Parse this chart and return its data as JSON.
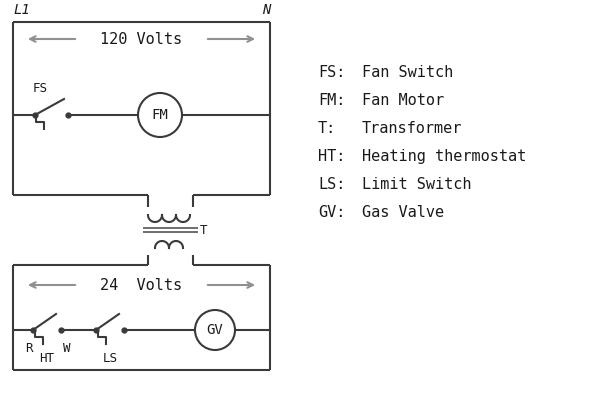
{
  "bg_color": "#ffffff",
  "line_color": "#3a3a3a",
  "arrow_color": "#909090",
  "text_color": "#1a1a1a",
  "legend": [
    [
      "FS:",
      "Fan Switch"
    ],
    [
      "FM:",
      "Fan Motor"
    ],
    [
      "T:",
      "Transformer"
    ],
    [
      "HT:",
      "Heating thermostat"
    ],
    [
      "LS:",
      "Limit Switch"
    ],
    [
      "GV:",
      "Gas Valve"
    ]
  ],
  "L1_label": "L1",
  "N_label": "N",
  "volts120": "120 Volts",
  "volts24": "24  Volts",
  "T_label": "T",
  "FS_label": "FS",
  "FM_label": "FM",
  "R_label": "R",
  "W_label": "W",
  "HT_label": "HT",
  "LS_label": "LS",
  "GV_label": "GV"
}
